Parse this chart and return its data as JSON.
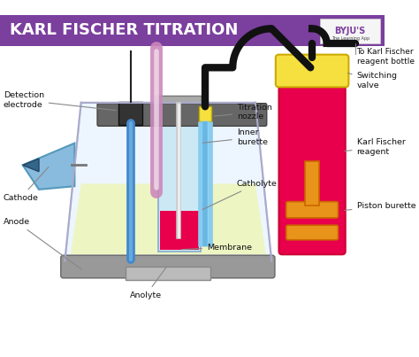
{
  "title": "KARL FISCHER TITRATION",
  "title_bg": "#7b3f9e",
  "title_color": "#ffffff",
  "bg_color": "#ffffff",
  "labels": {
    "detection_electrode": "Detection\nelectrode",
    "titration_nozzle": "Titration\nnozzle",
    "inner_burette": "Inner\nburette",
    "cathode": "Cathode",
    "anode": "Anode",
    "catholyte": "Catholyte",
    "membrane": "Membrane",
    "anolyte": "Anolyte",
    "to_kf_bottle": "To Karl Fischer\nreagent bottle",
    "switching_valve": "Switching\nvalve",
    "kf_reagent": "Karl Fischer\nreagent",
    "piston_burette": "Piston burette"
  },
  "colors": {
    "vessel_fill": "#eef5c0",
    "inner_tube_fill": "#cce8f5",
    "blue_electrode": "#4488cc",
    "pink_rod": "#cc88bb",
    "gray_clamp": "#666666",
    "red_fill": "#e8004c",
    "yellow_fill": "#f5e040",
    "orange_fill": "#e8941a",
    "light_blue": "#88ccee",
    "byju_purple": "#7b3f9e"
  }
}
